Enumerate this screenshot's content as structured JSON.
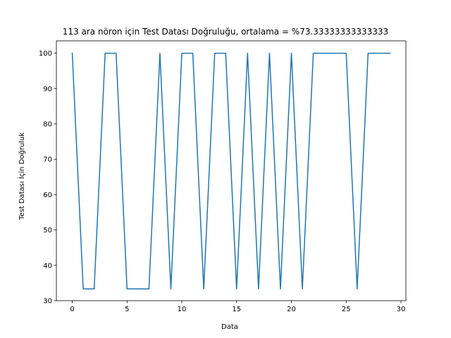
{
  "chart_data": {
    "type": "line",
    "title": "113 ara nöron için Test Datası Doğruluğu, ortalama = %73.33333333333333",
    "xlabel": "Data",
    "ylabel": "Test Datası İçin Doğruluk",
    "xlim": [
      -1.45,
      30.45
    ],
    "ylim": [
      30,
      103.5
    ],
    "xticks": [
      0,
      5,
      10,
      15,
      20,
      25,
      30
    ],
    "yticks": [
      30,
      40,
      50,
      60,
      70,
      80,
      90,
      100
    ],
    "grid": false,
    "series": [
      {
        "color": "#1f77b4",
        "x": [
          0,
          1,
          2,
          3,
          4,
          5,
          6,
          7,
          8,
          9,
          10,
          11,
          12,
          13,
          14,
          15,
          16,
          17,
          18,
          19,
          20,
          21,
          22,
          23,
          24,
          25,
          26,
          27,
          28,
          29
        ],
        "y": [
          100,
          33.33,
          33.33,
          100,
          100,
          33.33,
          33.33,
          33.33,
          100,
          33.33,
          100,
          100,
          33.33,
          100,
          100,
          33.33,
          100,
          33.33,
          100,
          33.33,
          100,
          33.33,
          100,
          100,
          100,
          100,
          33.33,
          100,
          100,
          100
        ]
      }
    ]
  }
}
